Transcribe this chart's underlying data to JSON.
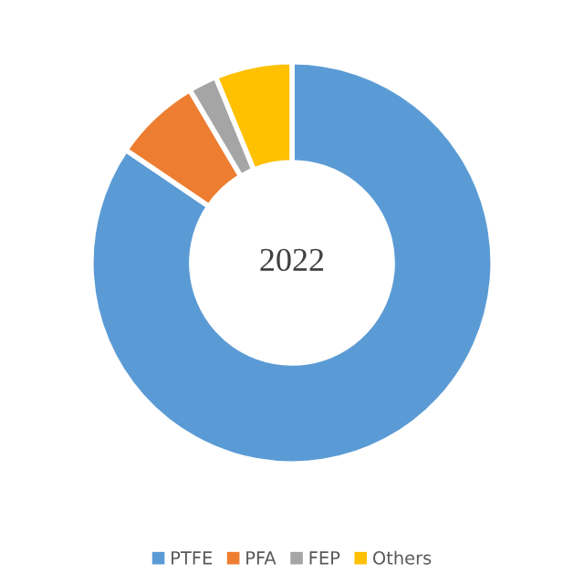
{
  "chart_data": {
    "type": "donut",
    "title": "2022",
    "categories": [
      "PTFE",
      "PFA",
      "FEP",
      "Others"
    ],
    "values": [
      84.5,
      7,
      2.3,
      6.2
    ],
    "colors": [
      "#5b9bd5",
      "#ed7d31",
      "#a5a5a5",
      "#ffc000"
    ],
    "legend": "bottom"
  }
}
